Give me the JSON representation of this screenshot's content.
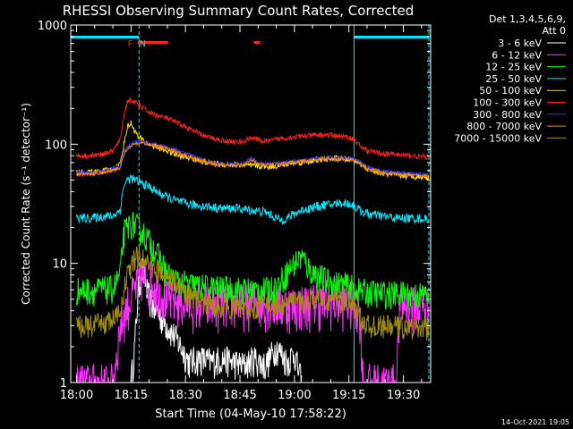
{
  "chart_data": {
    "type": "line",
    "title": "RHESSI Observing Summary Count Rates, Corrected",
    "xlabel": "Start Time (04-May-10 17:58:22)",
    "ylabel": "Corrected Count Rate (s⁻¹ detector⁻¹)",
    "yscale": "log",
    "ylim": [
      1,
      1000
    ],
    "xlim_minutes": [
      -1.6,
      97.5
    ],
    "x_unit": "minutes after 18:00 UT",
    "xticks": [
      {
        "t": 0,
        "label": "18:00"
      },
      {
        "t": 15,
        "label": "18:15"
      },
      {
        "t": 30,
        "label": "18:30"
      },
      {
        "t": 45,
        "label": "18:45"
      },
      {
        "t": 60,
        "label": "19:00"
      },
      {
        "t": 75,
        "label": "19:15"
      },
      {
        "t": 90,
        "label": "19:30"
      }
    ],
    "yticks": [
      {
        "v": 1,
        "label": "1"
      },
      {
        "v": 10,
        "label": "10"
      },
      {
        "v": 100,
        "label": "100"
      },
      {
        "v": 1000,
        "label": "1000"
      }
    ],
    "legend_header": [
      "Det 1,3,4,5,6,9,",
      "Att 0"
    ],
    "legend_position": "right",
    "footer_date": "14-Oct-2021 19:05",
    "flags": {
      "labels": [
        {
          "text": "F",
          "t": 14.8,
          "color": "#ff2020"
        },
        {
          "text": "N",
          "t": 18.2,
          "color": "#00e8ff"
        }
      ],
      "night_bars": [
        [
          -1.6,
          17.2
        ],
        [
          76.4,
          97.0
        ]
      ],
      "flare_bars": [
        [
          16.8,
          25.2
        ],
        [
          48.8,
          50.5
        ]
      ],
      "night_lines": [
        17.2,
        76.4,
        97.0
      ]
    },
    "series": [
      {
        "name": "3 - 6 keV",
        "color": "#ffffff",
        "x": [
          15,
          16,
          17,
          18,
          19,
          20,
          22,
          25,
          28,
          31,
          34,
          37,
          40,
          43,
          46,
          49,
          52,
          55,
          58,
          60,
          61,
          62
        ],
        "y": [
          1,
          2,
          6,
          9,
          7,
          5,
          4,
          3,
          2.2,
          1.5,
          1.6,
          1.5,
          1.6,
          1.5,
          1.4,
          1.6,
          1.4,
          2.0,
          1.5,
          1.8,
          1.3,
          1
        ]
      },
      {
        "name": "6 - 12 keV",
        "color": "#ff30ff",
        "x": [
          0,
          6,
          10,
          12,
          14,
          16,
          18,
          20,
          22,
          25,
          30,
          35,
          40,
          45,
          50,
          55,
          60,
          65,
          70,
          75,
          77,
          78,
          79,
          88,
          89,
          90,
          95,
          97
        ],
        "y": [
          1,
          1,
          1,
          3,
          4.5,
          6,
          8,
          7,
          6.5,
          5,
          4.7,
          4.5,
          4.6,
          4.7,
          4.8,
          4.6,
          4.5,
          4.7,
          4.8,
          4.7,
          4.5,
          3.8,
          1,
          1,
          4.2,
          4.5,
          4.4,
          4.4
        ]
      },
      {
        "name": "12 - 25 keV",
        "color": "#00ff00",
        "x": [
          0,
          5,
          10,
          12,
          13,
          15,
          17,
          19,
          21,
          23,
          25,
          28,
          32,
          36,
          40,
          44,
          48,
          52,
          55,
          58,
          60,
          62,
          64,
          66,
          68,
          70,
          74,
          76,
          78,
          82,
          86,
          90,
          94,
          97
        ],
        "y": [
          6,
          6,
          6.2,
          8,
          18,
          22,
          20,
          17,
          14,
          11,
          8,
          7,
          6.6,
          6.3,
          6.2,
          6.1,
          6.0,
          6.0,
          6.3,
          8.5,
          10,
          11.5,
          9,
          8,
          7.5,
          7,
          6.6,
          6.3,
          5.9,
          5.7,
          5.6,
          5.6,
          5.5,
          5.5
        ]
      },
      {
        "name": "25 - 50 keV",
        "color": "#00e8ff",
        "x": [
          0,
          4,
          8,
          10,
          12,
          13,
          14,
          15,
          16,
          18,
          20,
          22,
          25,
          28,
          32,
          36,
          40,
          44,
          48,
          52,
          54,
          56,
          58,
          60,
          62,
          64,
          66,
          68,
          70,
          72,
          74,
          76,
          78,
          80,
          84,
          88,
          92,
          97
        ],
        "y": [
          24,
          24,
          25,
          25,
          28,
          45,
          50,
          52,
          50,
          47,
          44,
          40,
          36,
          33,
          31,
          30,
          29,
          29,
          28,
          27,
          25,
          23,
          24,
          26,
          28,
          29,
          30,
          31,
          31,
          32,
          32,
          31,
          28,
          26,
          25,
          24,
          24,
          23.5
        ]
      },
      {
        "name": "50 - 100 keV",
        "color": "#ffe000",
        "x": [
          0,
          4,
          8,
          10,
          12,
          13,
          14,
          15,
          16,
          17,
          18,
          19,
          20,
          22,
          25,
          28,
          32,
          36,
          40,
          44,
          48,
          52,
          56,
          60,
          64,
          68,
          72,
          76,
          78,
          80,
          84,
          88,
          92,
          97
        ],
        "y": [
          58,
          58,
          60,
          62,
          68,
          100,
          140,
          150,
          130,
          115,
          110,
          104,
          100,
          95,
          88,
          80,
          76,
          70,
          68,
          67,
          66,
          65,
          66,
          70,
          72,
          75,
          76,
          74,
          70,
          62,
          57,
          55,
          54,
          53
        ]
      },
      {
        "name": "100 - 300 keV",
        "color": "#ff2020",
        "x": [
          0,
          4,
          8,
          10,
          12,
          13,
          14,
          15,
          16,
          17,
          18,
          19,
          20,
          21,
          22,
          25,
          28,
          32,
          36,
          40,
          44,
          46,
          48,
          50,
          52,
          54,
          56,
          60,
          64,
          68,
          72,
          76,
          78,
          80,
          84,
          88,
          92,
          97
        ],
        "y": [
          80,
          80,
          84,
          88,
          108,
          170,
          230,
          235,
          225,
          215,
          205,
          195,
          185,
          180,
          175,
          165,
          150,
          130,
          115,
          108,
          104,
          105,
          115,
          108,
          105,
          108,
          112,
          115,
          118,
          120,
          118,
          112,
          98,
          88,
          84,
          82,
          80,
          78
        ]
      },
      {
        "name": "300 - 800 keV",
        "color": "#3030ff",
        "x": [
          0,
          4,
          8,
          10,
          12,
          13,
          14,
          15,
          16,
          17,
          18,
          19,
          20,
          22,
          25,
          28,
          32,
          36,
          40,
          44,
          46,
          48,
          50,
          52,
          56,
          60,
          64,
          68,
          72,
          76,
          78,
          80,
          84,
          88,
          92,
          97
        ],
        "y": [
          58,
          58,
          60,
          62,
          66,
          85,
          95,
          100,
          104,
          105,
          106,
          104,
          102,
          100,
          95,
          88,
          80,
          72,
          69,
          68,
          69,
          78,
          70,
          69,
          70,
          73,
          75,
          77,
          77,
          76,
          72,
          64,
          60,
          58,
          57,
          56
        ]
      },
      {
        "name": "800 - 7000 keV",
        "color": "#ff8000",
        "x": [
          0,
          4,
          8,
          10,
          12,
          13,
          14,
          15,
          16,
          17,
          18,
          19,
          20,
          22,
          25,
          28,
          32,
          36,
          40,
          44,
          46,
          48,
          50,
          52,
          56,
          60,
          64,
          68,
          72,
          76,
          78,
          80,
          84,
          88,
          92,
          97
        ],
        "y": [
          56,
          56,
          58,
          60,
          63,
          82,
          92,
          97,
          100,
          102,
          103,
          101,
          99,
          97,
          92,
          85,
          77,
          70,
          67,
          66,
          67,
          75,
          68,
          67,
          68,
          71,
          73,
          75,
          75,
          74,
          70,
          62,
          58,
          56,
          55,
          54
        ]
      },
      {
        "name": "7000 - 15000 keV",
        "color": "#a09000",
        "x": [
          0,
          4,
          8,
          10,
          12,
          13,
          14,
          15,
          16,
          17,
          18,
          19,
          20,
          22,
          25,
          28,
          32,
          36,
          40,
          44,
          48,
          52,
          56,
          60,
          64,
          68,
          72,
          76,
          78,
          80,
          84,
          88,
          92,
          97
        ],
        "y": [
          3,
          3,
          3.2,
          3.4,
          3.8,
          6,
          8,
          9.5,
          11,
          11.5,
          11,
          10.5,
          10,
          9,
          8,
          6.5,
          5.2,
          4.6,
          4.4,
          4.3,
          4.3,
          4.5,
          4.6,
          4.8,
          4.9,
          5.0,
          4.9,
          4.7,
          3.6,
          3.0,
          3.0,
          3.0,
          2.9,
          2.9
        ]
      }
    ]
  }
}
